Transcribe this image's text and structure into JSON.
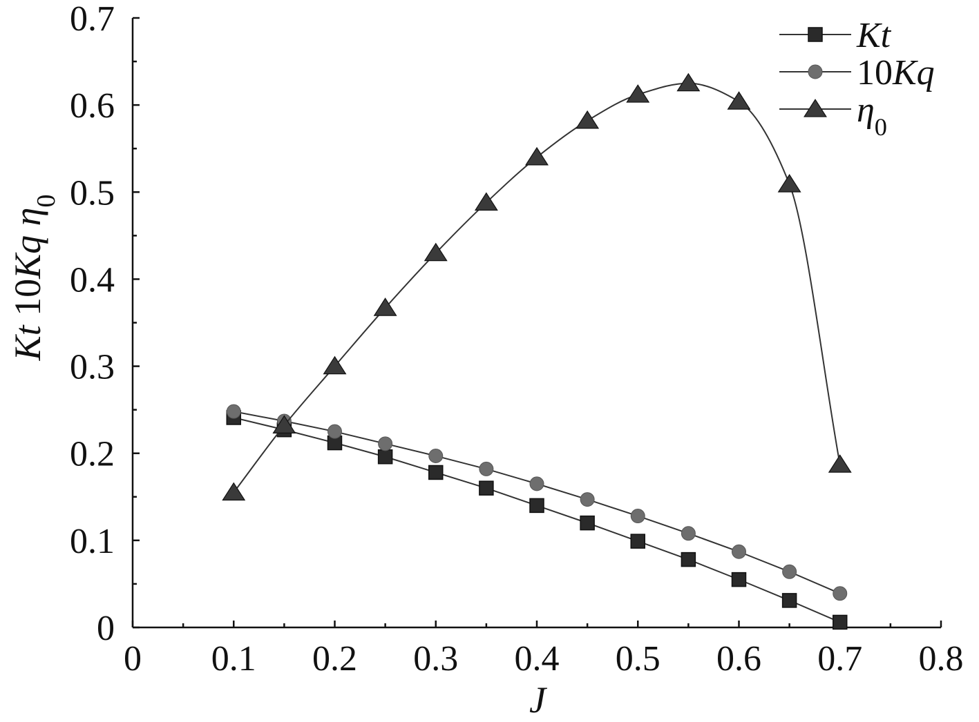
{
  "chart_data": {
    "type": "line",
    "title": "",
    "xlabel": "J",
    "ylabel": {
      "parts": [
        {
          "text": "Kt",
          "italic": true
        },
        {
          "text": " 10",
          "italic": false
        },
        {
          "text": "Kq",
          "italic": true
        },
        {
          "text": " η",
          "italic": true
        },
        {
          "text": "0",
          "italic": false,
          "sub": true
        }
      ]
    },
    "xlim": [
      0,
      0.8
    ],
    "ylim": [
      0,
      0.7
    ],
    "x_ticks": [
      "0",
      "0.1",
      "0.2",
      "0.3",
      "0.4",
      "0.5",
      "0.6",
      "0.7",
      "0.8"
    ],
    "y_ticks": [
      "0",
      "0.1",
      "0.2",
      "0.3",
      "0.4",
      "0.5",
      "0.6",
      "0.7"
    ],
    "x_tick_values": [
      0,
      0.1,
      0.2,
      0.3,
      0.4,
      0.5,
      0.6,
      0.7,
      0.8
    ],
    "y_tick_values": [
      0,
      0.1,
      0.2,
      0.3,
      0.4,
      0.5,
      0.6,
      0.7
    ],
    "grid": false,
    "legend_position": "top-right",
    "x": [
      0.1,
      0.15,
      0.2,
      0.25,
      0.3,
      0.35,
      0.4,
      0.45,
      0.5,
      0.55,
      0.6,
      0.65,
      0.7
    ],
    "series": [
      {
        "name": "Kt",
        "legend_parts": [
          {
            "text": "Kt",
            "italic": true
          }
        ],
        "marker": "square",
        "color": "#2a2a2a",
        "smooth": false,
        "values": [
          0.241,
          0.227,
          0.212,
          0.196,
          0.178,
          0.16,
          0.14,
          0.12,
          0.099,
          0.078,
          0.055,
          0.031,
          0.006
        ]
      },
      {
        "name": "10Kq",
        "legend_parts": [
          {
            "text": "10",
            "italic": false
          },
          {
            "text": "Kq",
            "italic": true
          }
        ],
        "marker": "circle",
        "color": "#6e6e6e",
        "smooth": false,
        "values": [
          0.248,
          0.237,
          0.225,
          0.211,
          0.197,
          0.182,
          0.165,
          0.147,
          0.128,
          0.108,
          0.087,
          0.064,
          0.039
        ]
      },
      {
        "name": "η0",
        "legend_parts": [
          {
            "text": "η",
            "italic": true
          },
          {
            "text": "0",
            "italic": false,
            "sub": true
          }
        ],
        "marker": "triangle",
        "color": "#3a3a3a",
        "smooth": true,
        "values": [
          0.155,
          0.232,
          0.3,
          0.367,
          0.43,
          0.488,
          0.54,
          0.582,
          0.612,
          0.625,
          0.604,
          0.509,
          0.187
        ]
      }
    ]
  }
}
